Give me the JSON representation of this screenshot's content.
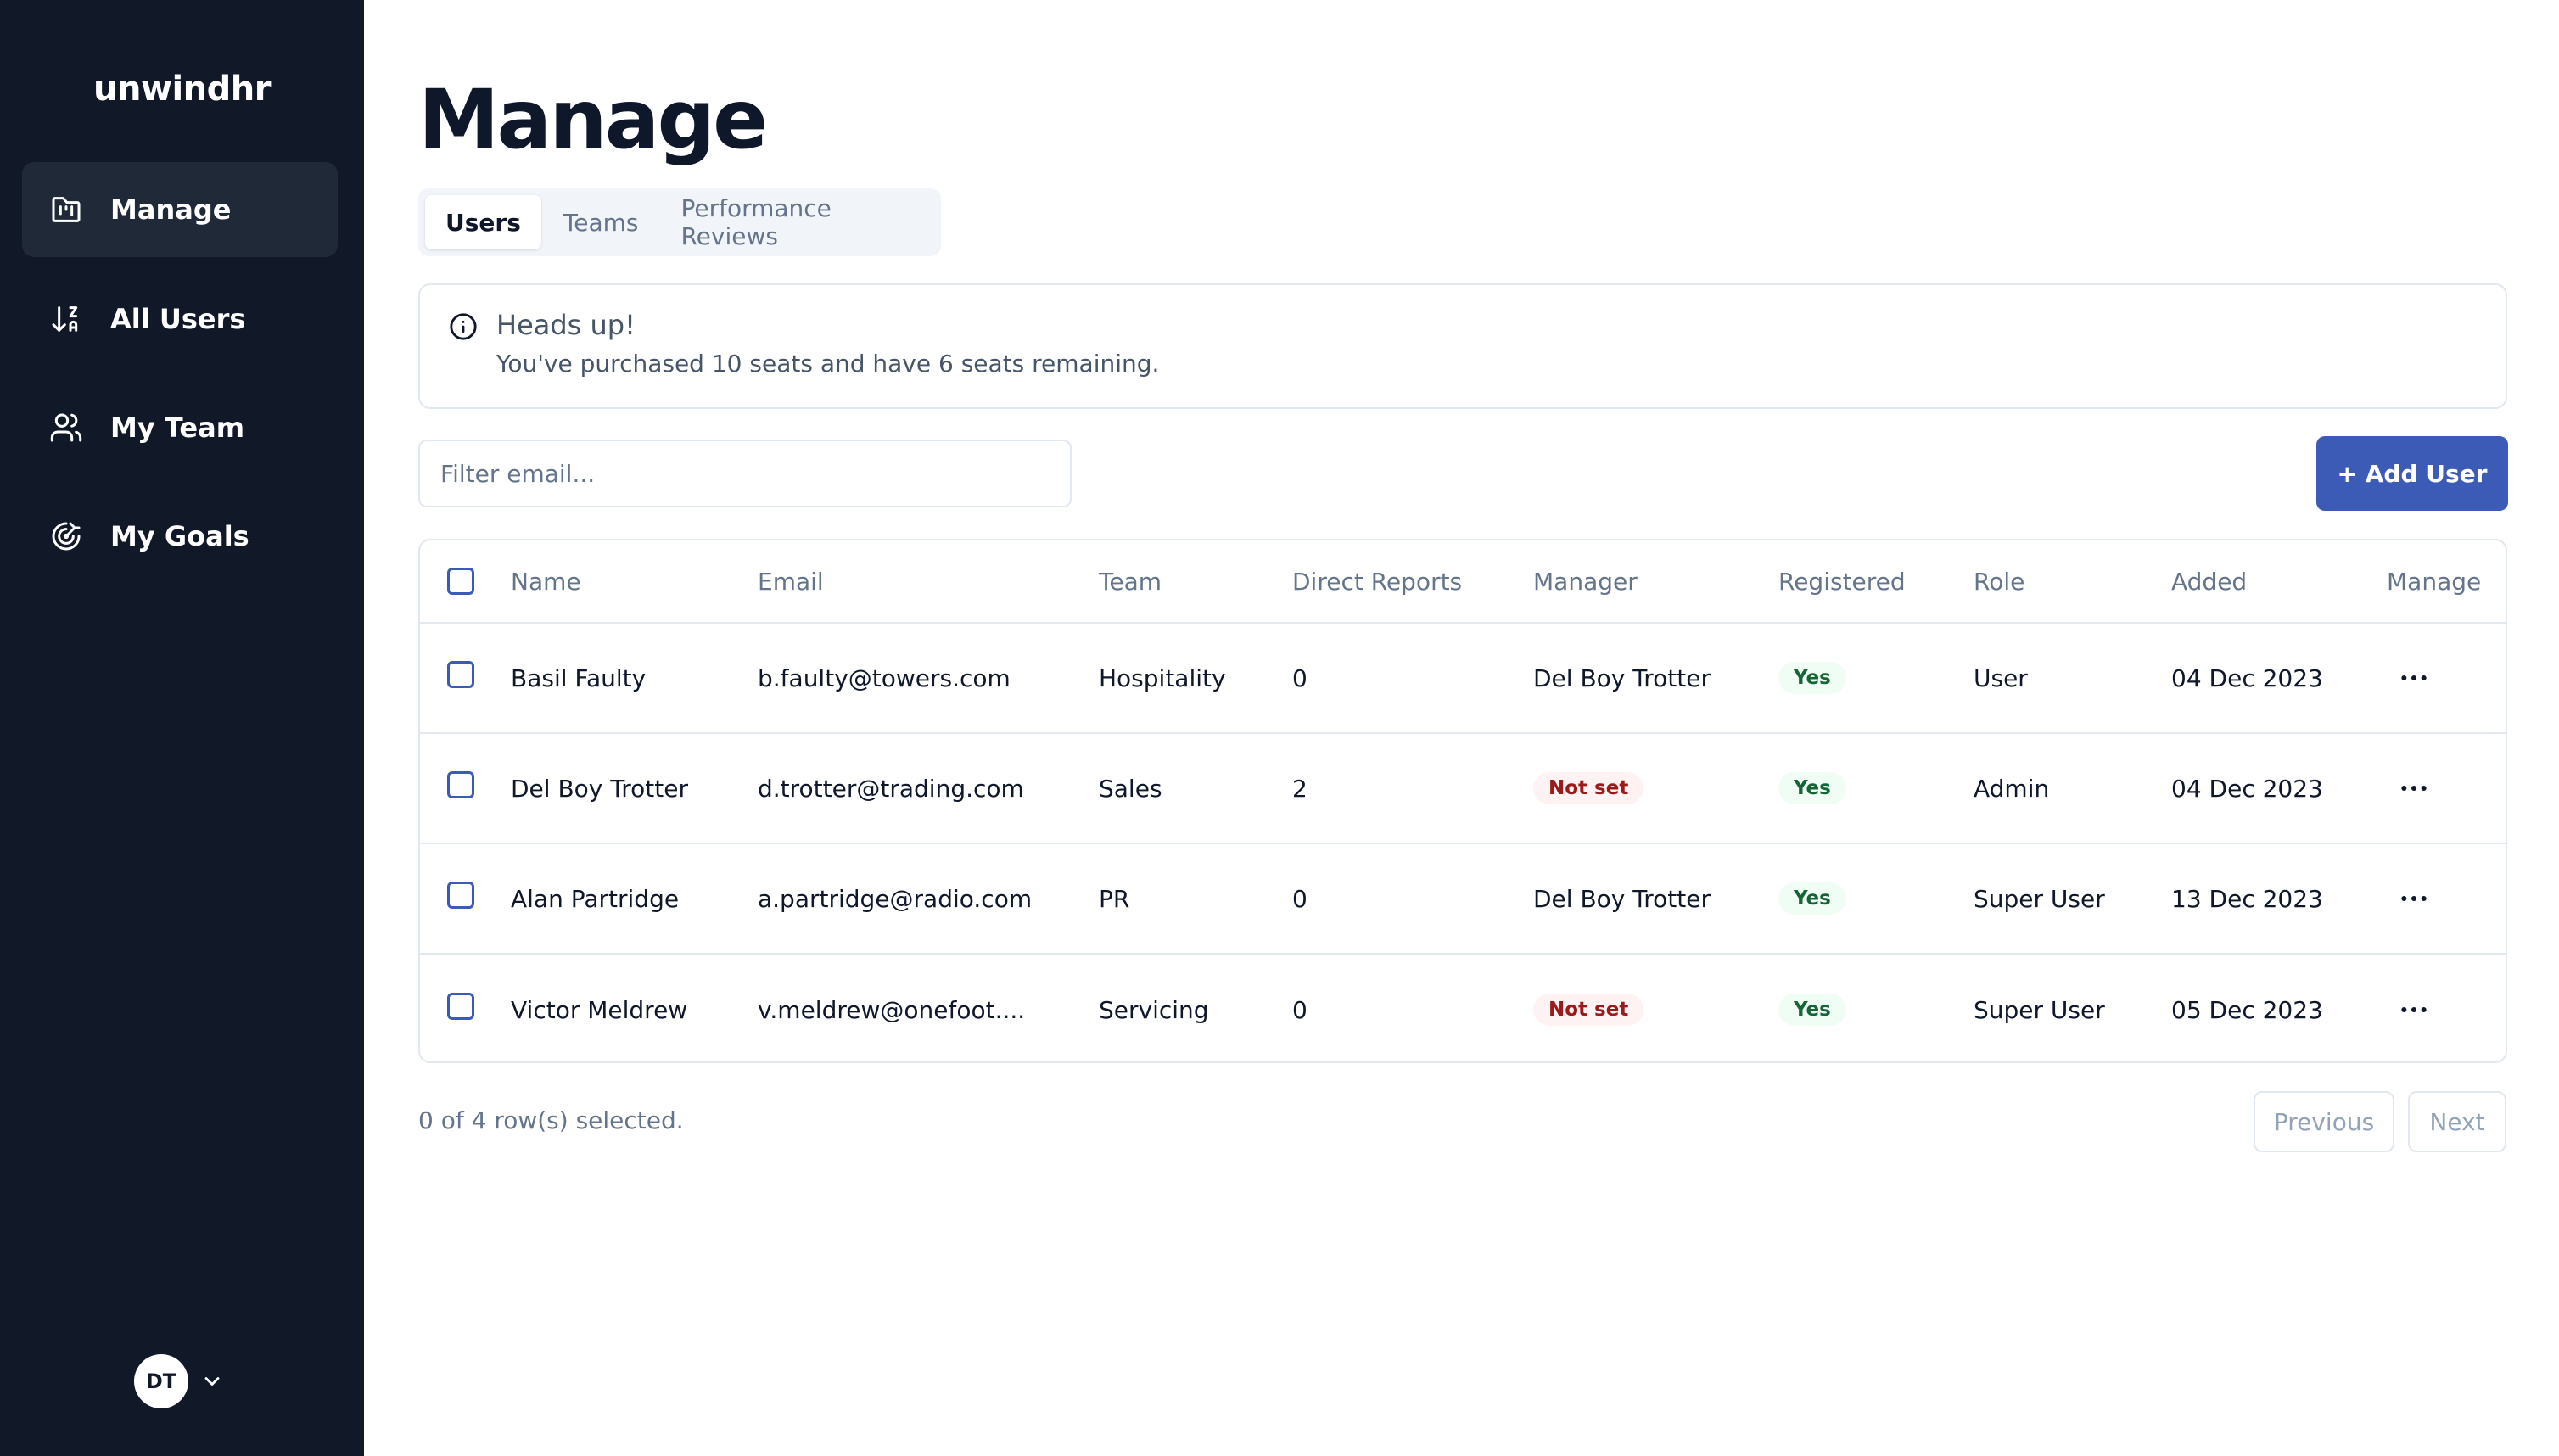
{
  "app": {
    "name": "unwindhr"
  },
  "sidebar": {
    "items": [
      {
        "label": "Manage",
        "icon": "folder-kanban-icon",
        "active": true
      },
      {
        "label": "All Users",
        "icon": "sort-az-icon",
        "active": false
      },
      {
        "label": "My Team",
        "icon": "users-icon",
        "active": false
      },
      {
        "label": "My Goals",
        "icon": "goal-target-icon",
        "active": false
      }
    ],
    "user": {
      "initials": "DT"
    }
  },
  "page": {
    "title": "Manage"
  },
  "tabs": [
    {
      "label": "Users",
      "active": true
    },
    {
      "label": "Teams",
      "active": false
    },
    {
      "label": "Performance Reviews",
      "active": false
    }
  ],
  "alert": {
    "title": "Heads up!",
    "description": "You've purchased 10 seats and have 6 seats remaining."
  },
  "filter": {
    "placeholder": "Filter email...",
    "value": ""
  },
  "add_user_label": "+ Add User",
  "table": {
    "columns": [
      "Name",
      "Email",
      "Team",
      "Direct Reports",
      "Manager",
      "Registered",
      "Role",
      "Added",
      "Manage"
    ],
    "rows": [
      {
        "name": "Basil Faulty",
        "email": "b.faulty@towers.com",
        "team": "Hospitality",
        "direct_reports": "0",
        "manager": "Del Boy Trotter",
        "registered": "Yes",
        "role": "User",
        "added": "04 Dec 2023"
      },
      {
        "name": "Del Boy Trotter",
        "email": "d.trotter@trading.com",
        "team": "Sales",
        "direct_reports": "2",
        "manager": "Not set",
        "registered": "Yes",
        "role": "Admin",
        "added": "04 Dec 2023"
      },
      {
        "name": "Alan Partridge",
        "email": "a.partridge@radio.com",
        "team": "PR",
        "direct_reports": "0",
        "manager": "Del Boy Trotter",
        "registered": "Yes",
        "role": "Super User",
        "added": "13 Dec 2023"
      },
      {
        "name": "Victor Meldrew",
        "email": "v.meldrew@onefoot....",
        "team": "Servicing",
        "direct_reports": "0",
        "manager": "Not set",
        "registered": "Yes",
        "role": "Super User",
        "added": "05 Dec 2023"
      }
    ]
  },
  "footer": {
    "selection_text": "0 of 4 row(s) selected.",
    "previous_label": "Previous",
    "next_label": "Next"
  },
  "colors": {
    "sidebar_bg": "#111827",
    "sidebar_active": "#1f2937",
    "accent": "#3b5bb7",
    "badge_yes_bg": "#f0fdf4",
    "badge_yes_text": "#166534",
    "badge_notset_bg": "#fef2f2",
    "badge_notset_text": "#991b1b"
  }
}
